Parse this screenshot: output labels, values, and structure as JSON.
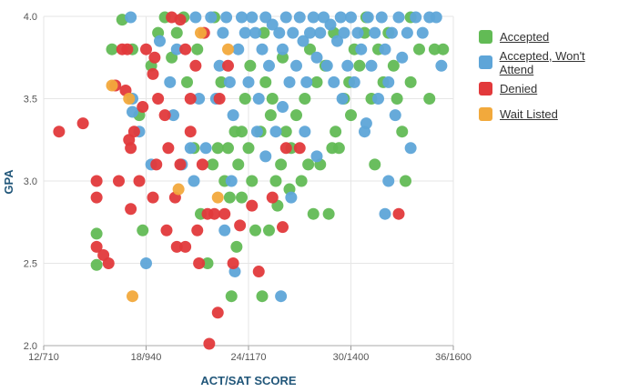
{
  "chart_data": {
    "type": "scatter",
    "title": "",
    "xlabel": "ACT/SAT SCORE",
    "ylabel": "GPA",
    "xlim": [
      12,
      36
    ],
    "ylim": [
      2.0,
      4.0
    ],
    "x_ticks": [
      {
        "value": 12,
        "label": "12/710"
      },
      {
        "value": 18,
        "label": "18/940"
      },
      {
        "value": 24,
        "label": "24/1170"
      },
      {
        "value": 30,
        "label": "30/1400"
      },
      {
        "value": 36,
        "label": "36/1600"
      }
    ],
    "y_ticks": [
      {
        "value": 2.0,
        "label": "2.0"
      },
      {
        "value": 2.5,
        "label": "2.5"
      },
      {
        "value": 3.0,
        "label": "3.0"
      },
      {
        "value": 3.5,
        "label": "3.5"
      },
      {
        "value": 4.0,
        "label": "4.0"
      }
    ],
    "grid": true,
    "legend_position": "right",
    "series": [
      {
        "name": "Accepted",
        "color": "#62bb55",
        "points": [
          [
            15.1,
            2.68
          ],
          [
            15.1,
            2.49
          ],
          [
            16.6,
            3.98
          ],
          [
            17.2,
            3.8
          ],
          [
            17.6,
            3.4
          ],
          [
            17.8,
            2.7
          ],
          [
            18.3,
            3.7
          ],
          [
            18.7,
            3.9
          ],
          [
            19.1,
            4.0
          ],
          [
            19.8,
            3.9
          ],
          [
            20.2,
            4.0
          ],
          [
            20.8,
            3.2
          ],
          [
            21.2,
            2.8
          ],
          [
            21.6,
            2.5
          ],
          [
            21.9,
            3.1
          ],
          [
            22.2,
            3.2
          ],
          [
            22.6,
            3.0
          ],
          [
            22.8,
            3.2
          ],
          [
            22.9,
            2.9
          ],
          [
            23.3,
            2.6
          ],
          [
            23.4,
            3.1
          ],
          [
            23.6,
            3.3
          ],
          [
            23.6,
            2.9
          ],
          [
            24.0,
            3.2
          ],
          [
            24.2,
            3.0
          ],
          [
            24.4,
            2.7
          ],
          [
            24.8,
            2.3
          ],
          [
            24.7,
            3.3
          ],
          [
            25.0,
            3.6
          ],
          [
            25.2,
            2.7
          ],
          [
            25.3,
            3.4
          ],
          [
            25.6,
            3.0
          ],
          [
            25.9,
            3.1
          ],
          [
            26.2,
            3.3
          ],
          [
            26.4,
            2.95
          ],
          [
            26.8,
            3.4
          ],
          [
            27.1,
            3.0
          ],
          [
            27.3,
            3.5
          ],
          [
            27.6,
            3.8
          ],
          [
            27.8,
            2.8
          ],
          [
            28.0,
            3.6
          ],
          [
            28.2,
            3.1
          ],
          [
            28.5,
            3.7
          ],
          [
            28.7,
            2.8
          ],
          [
            29.0,
            3.9
          ],
          [
            29.3,
            3.2
          ],
          [
            29.6,
            3.5
          ],
          [
            29.9,
            3.6
          ],
          [
            30.2,
            3.8
          ],
          [
            30.5,
            3.7
          ],
          [
            30.9,
            4.0
          ],
          [
            31.2,
            3.5
          ],
          [
            31.6,
            3.8
          ],
          [
            31.9,
            3.6
          ],
          [
            32.2,
            3.9
          ],
          [
            32.5,
            3.7
          ],
          [
            32.7,
            3.5
          ],
          [
            33.0,
            3.3
          ],
          [
            33.2,
            3.0
          ],
          [
            33.5,
            3.6
          ],
          [
            34.0,
            3.8
          ],
          [
            34.6,
            3.5
          ],
          [
            35.4,
            3.8
          ],
          [
            34.9,
            3.8
          ],
          [
            31.4,
            3.1
          ],
          [
            26.0,
            3.75
          ],
          [
            25.4,
            3.5
          ],
          [
            24.9,
            3.9
          ],
          [
            27.5,
            3.1
          ],
          [
            28.9,
            3.2
          ],
          [
            30.0,
            3.4
          ],
          [
            21.0,
            3.8
          ],
          [
            22.4,
            3.6
          ],
          [
            23.8,
            3.5
          ],
          [
            26.5,
            3.2
          ],
          [
            29.1,
            3.3
          ],
          [
            23.0,
            2.3
          ],
          [
            20.4,
            3.6
          ],
          [
            16.0,
            3.8
          ],
          [
            30.8,
            3.9
          ],
          [
            33.5,
            4.0
          ],
          [
            22.0,
            4.0
          ],
          [
            25.7,
            2.85
          ],
          [
            23.2,
            3.3
          ],
          [
            19.5,
            3.75
          ],
          [
            24.1,
            3.7
          ]
        ]
      },
      {
        "name": "Accepted, Won't Attend",
        "color": "#5ea5d8",
        "points": [
          [
            17.1,
            4.0
          ],
          [
            17.2,
            3.42
          ],
          [
            17.2,
            3.5
          ],
          [
            17.6,
            3.3
          ],
          [
            18.0,
            2.5
          ],
          [
            18.3,
            3.1
          ],
          [
            18.8,
            3.85
          ],
          [
            19.4,
            3.6
          ],
          [
            19.6,
            3.4
          ],
          [
            19.8,
            3.8
          ],
          [
            20.1,
            3.1
          ],
          [
            20.6,
            3.2
          ],
          [
            20.9,
            4.0
          ],
          [
            21.1,
            3.5
          ],
          [
            21.5,
            3.2
          ],
          [
            21.8,
            4.0
          ],
          [
            22.1,
            3.5
          ],
          [
            22.3,
            3.7
          ],
          [
            22.5,
            3.9
          ],
          [
            22.7,
            4.0
          ],
          [
            22.9,
            3.6
          ],
          [
            23.1,
            3.4
          ],
          [
            23.2,
            2.45
          ],
          [
            23.4,
            3.8
          ],
          [
            23.6,
            4.0
          ],
          [
            23.8,
            3.9
          ],
          [
            24.0,
            3.6
          ],
          [
            24.2,
            4.0
          ],
          [
            24.4,
            3.9
          ],
          [
            24.6,
            3.5
          ],
          [
            24.8,
            3.8
          ],
          [
            25.0,
            4.0
          ],
          [
            25.2,
            3.7
          ],
          [
            25.4,
            3.95
          ],
          [
            25.6,
            3.3
          ],
          [
            25.8,
            3.9
          ],
          [
            25.9,
            2.3
          ],
          [
            26.0,
            3.8
          ],
          [
            26.2,
            4.0
          ],
          [
            26.4,
            3.6
          ],
          [
            26.6,
            3.9
          ],
          [
            26.8,
            3.7
          ],
          [
            27.0,
            4.0
          ],
          [
            27.2,
            3.85
          ],
          [
            27.4,
            3.6
          ],
          [
            27.6,
            3.9
          ],
          [
            27.8,
            4.0
          ],
          [
            28.0,
            3.75
          ],
          [
            28.2,
            3.9
          ],
          [
            28.4,
            4.0
          ],
          [
            28.6,
            3.7
          ],
          [
            28.8,
            3.95
          ],
          [
            29.0,
            3.6
          ],
          [
            29.2,
            3.85
          ],
          [
            29.4,
            4.0
          ],
          [
            29.6,
            3.9
          ],
          [
            29.8,
            3.7
          ],
          [
            30.0,
            4.0
          ],
          [
            30.2,
            3.6
          ],
          [
            30.4,
            3.9
          ],
          [
            30.6,
            3.8
          ],
          [
            30.8,
            3.3
          ],
          [
            31.0,
            4.0
          ],
          [
            31.2,
            3.7
          ],
          [
            31.4,
            3.9
          ],
          [
            31.6,
            3.5
          ],
          [
            31.8,
            4.0
          ],
          [
            32.0,
            3.8
          ],
          [
            32.2,
            3.6
          ],
          [
            32.4,
            3.9
          ],
          [
            32.6,
            3.4
          ],
          [
            32.8,
            4.0
          ],
          [
            33.0,
            3.75
          ],
          [
            33.3,
            3.9
          ],
          [
            33.5,
            3.2
          ],
          [
            33.8,
            4.0
          ],
          [
            34.2,
            3.9
          ],
          [
            34.6,
            4.0
          ],
          [
            35.0,
            4.0
          ],
          [
            35.3,
            3.7
          ],
          [
            32.0,
            2.8
          ],
          [
            32.2,
            3.0
          ],
          [
            26.5,
            2.9
          ],
          [
            28.0,
            3.15
          ],
          [
            24.5,
            3.3
          ],
          [
            23.0,
            3.0
          ],
          [
            20.8,
            3.0
          ],
          [
            22.6,
            2.7
          ],
          [
            25.0,
            3.15
          ],
          [
            26.0,
            3.45
          ],
          [
            30.9,
            3.35
          ],
          [
            29.5,
            3.5
          ],
          [
            27.3,
            3.3
          ]
        ]
      },
      {
        "name": "Denied",
        "color": "#e2393b",
        "points": [
          [
            12.9,
            3.3
          ],
          [
            14.3,
            3.35
          ],
          [
            15.1,
            3.0
          ],
          [
            15.1,
            2.9
          ],
          [
            15.1,
            2.6
          ],
          [
            15.5,
            2.55
          ],
          [
            15.8,
            2.5
          ],
          [
            16.2,
            3.58
          ],
          [
            16.4,
            3.0
          ],
          [
            16.6,
            3.8
          ],
          [
            16.9,
            3.8
          ],
          [
            17.0,
            3.25
          ],
          [
            17.1,
            3.2
          ],
          [
            17.1,
            2.83
          ],
          [
            17.3,
            3.3
          ],
          [
            17.6,
            3.0
          ],
          [
            18.0,
            3.8
          ],
          [
            18.4,
            3.65
          ],
          [
            18.6,
            3.1
          ],
          [
            18.4,
            2.9
          ],
          [
            18.7,
            3.5
          ],
          [
            19.1,
            3.4
          ],
          [
            19.2,
            2.7
          ],
          [
            19.3,
            3.2
          ],
          [
            19.7,
            2.9
          ],
          [
            19.8,
            2.6
          ],
          [
            20.0,
            3.1
          ],
          [
            20.3,
            3.8
          ],
          [
            20.3,
            2.6
          ],
          [
            20.6,
            3.3
          ],
          [
            20.9,
            3.7
          ],
          [
            21.0,
            2.7
          ],
          [
            21.1,
            2.5
          ],
          [
            21.3,
            3.1
          ],
          [
            21.4,
            3.9
          ],
          [
            21.6,
            2.8
          ],
          [
            22.0,
            2.8
          ],
          [
            22.2,
            2.2
          ],
          [
            22.3,
            3.5
          ],
          [
            22.6,
            2.8
          ],
          [
            22.8,
            3.7
          ],
          [
            23.1,
            2.5
          ],
          [
            23.5,
            2.73
          ],
          [
            24.2,
            2.85
          ],
          [
            24.6,
            2.45
          ],
          [
            25.4,
            2.9
          ],
          [
            26.0,
            2.72
          ],
          [
            21.7,
            2.0
          ],
          [
            19.5,
            4.0
          ],
          [
            20.0,
            3.98
          ],
          [
            18.5,
            3.75
          ],
          [
            17.8,
            3.45
          ],
          [
            16.8,
            3.55
          ],
          [
            20.6,
            3.5
          ],
          [
            32.8,
            2.8
          ],
          [
            26.2,
            3.2
          ],
          [
            27.0,
            3.2
          ]
        ]
      },
      {
        "name": "Wait Listed",
        "color": "#f2a93c",
        "points": [
          [
            16.0,
            3.58
          ],
          [
            17.0,
            3.5
          ],
          [
            17.2,
            2.3
          ],
          [
            19.9,
            2.95
          ],
          [
            21.2,
            3.9
          ],
          [
            22.2,
            2.9
          ],
          [
            22.8,
            3.8
          ]
        ]
      }
    ]
  }
}
